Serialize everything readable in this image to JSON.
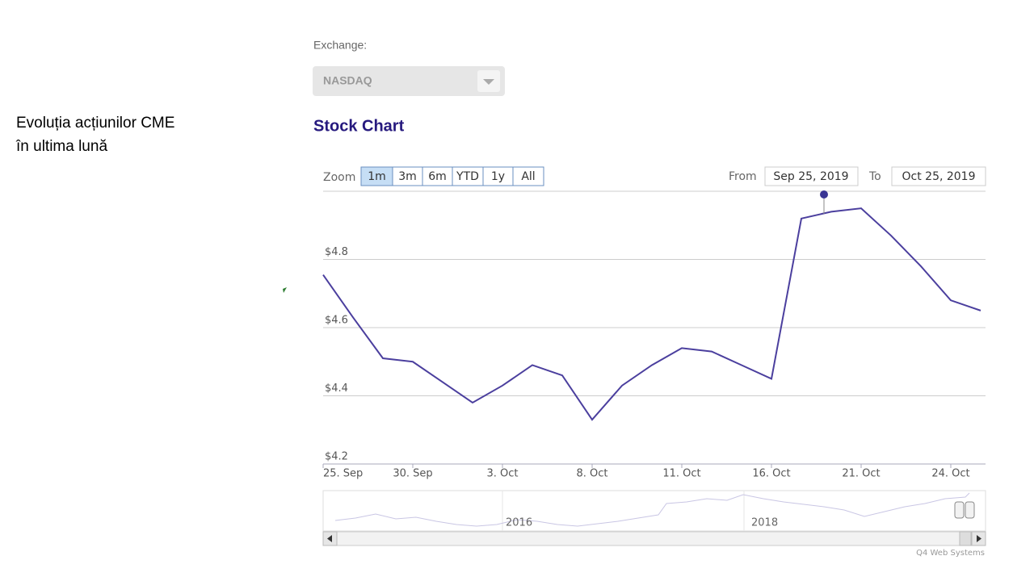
{
  "slide": {
    "caption": [
      "Evoluția acțiunilor CME",
      "în ultima lună"
    ]
  },
  "exchange": {
    "label": "Exchange:",
    "selected": "NASDAQ"
  },
  "chart_data": {
    "type": "line",
    "title": "Stock Chart",
    "zoom_label": "Zoom",
    "zoom_buttons": [
      "1m",
      "3m",
      "6m",
      "YTD",
      "1y",
      "All"
    ],
    "selected_zoom": "1m",
    "from_label": "From",
    "from": "Sep 25, 2019",
    "to_label": "To",
    "to": "Oct 25, 2019",
    "categories": [
      "25. Sep",
      null,
      null,
      "30. Sep",
      null,
      null,
      "3. Oct",
      null,
      null,
      "8. Oct",
      null,
      null,
      "11. Oct",
      null,
      null,
      "16. Oct",
      null,
      null,
      "21. Oct",
      null,
      null,
      "24. Oct",
      null
    ],
    "series": [
      {
        "color": "#4b3f9e",
        "values": [
          4.755,
          4.63,
          4.51,
          4.5,
          4.44,
          4.38,
          4.43,
          4.49,
          4.46,
          4.33,
          4.43,
          4.49,
          4.54,
          4.53,
          4.49,
          4.45,
          4.92,
          4.94,
          4.95,
          4.87,
          4.78,
          4.68,
          4.65
        ]
      }
    ],
    "ylim": [
      4.2,
      5.0
    ],
    "yticks": [
      {
        "value": 4.2,
        "label": "$4.2"
      },
      {
        "value": 4.4,
        "label": "$4.4"
      },
      {
        "value": 4.6,
        "label": "$4.6"
      },
      {
        "value": 4.8,
        "label": "$4.8"
      }
    ],
    "grid": true,
    "navigator_labels": [
      "2016",
      "2018"
    ],
    "credit": "Q4 Web Systems"
  }
}
